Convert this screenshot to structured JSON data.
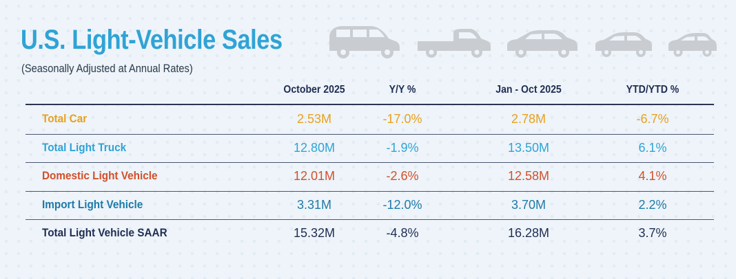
{
  "title": "U.S. Light-Vehicle Sales",
  "subtitle": "(Seasonally Adjusted at Annual Rates)",
  "colors": {
    "title": "#2fa3d6",
    "car": "#e8a11f",
    "truck": "#2fa3d6",
    "domestic": "#d2502a",
    "import": "#1d7aa8",
    "total": "#1f2d52",
    "vehicle_icons": "#c9cdd2"
  },
  "vehicle_icons": [
    "minivan-icon",
    "pickup-truck-icon",
    "sedan-icon",
    "compact-car-icon",
    "small-car-icon"
  ],
  "chart_data": {
    "type": "table",
    "columns": [
      "October 2025",
      "Y/Y %",
      "Jan - Oct 2025",
      "YTD/YTD %"
    ],
    "rows": [
      {
        "label": "Total Car",
        "values": [
          "2.53M",
          "-17.0%",
          "2.78M",
          "-6.7%"
        ]
      },
      {
        "label": "Total Light Truck",
        "values": [
          "12.80M",
          "-1.9%",
          "13.50M",
          "6.1%"
        ]
      },
      {
        "label": "Domestic Light Vehicle",
        "values": [
          "12.01M",
          "-2.6%",
          "12.58M",
          "4.1%"
        ]
      },
      {
        "label": "Import Light Vehicle",
        "values": [
          "3.31M",
          "-12.0%",
          "3.70M",
          "2.2%"
        ]
      },
      {
        "label": "Total Light Vehicle SAAR",
        "values": [
          "15.32M",
          "-4.8%",
          "16.28M",
          "3.7%"
        ]
      }
    ]
  }
}
